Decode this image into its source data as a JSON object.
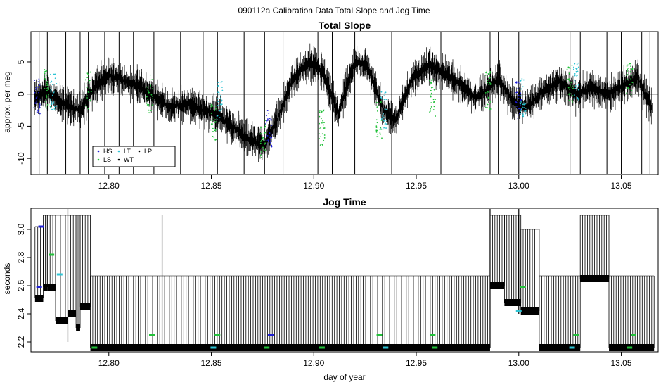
{
  "figure": {
    "title": "090112a   Calibration Data Total Slope and Jog Time",
    "xlabel": "day of year"
  },
  "colors": {
    "HS": "#1f1fd6",
    "LS": "#22c13a",
    "LT": "#2ec4d4",
    "WT": "#000000",
    "LP": "#000000",
    "trace": "#000000"
  },
  "chart_data": [
    {
      "type": "line",
      "title": "Total Slope",
      "xlabel": "",
      "ylabel": "approx. per meg",
      "xlim": [
        12.762,
        13.068
      ],
      "ylim": [
        -12.5,
        9.7
      ],
      "xticks": [
        12.8,
        12.85,
        12.9,
        12.95,
        13.0,
        13.05
      ],
      "xtick_labels": [
        "12.80",
        "12.85",
        "12.90",
        "12.95",
        "13.00",
        "13.05"
      ],
      "yticks": [
        -10,
        -5,
        0,
        5
      ],
      "ytick_labels": [
        "-10",
        "-5",
        "0",
        "5"
      ],
      "reference_line_y": 0,
      "legend": {
        "placement": "bottom-left",
        "entries": [
          {
            "label": "HS",
            "color": "#1f1fd6"
          },
          {
            "label": "LS",
            "color": "#22c13a"
          },
          {
            "label": "LT",
            "color": "#2ec4d4"
          },
          {
            "label": "WT",
            "color": "#000000"
          },
          {
            "label": "LP",
            "color": "#000000"
          }
        ]
      },
      "trend": {
        "x": [
          12.762,
          12.77,
          12.778,
          12.786,
          12.794,
          12.8,
          12.808,
          12.816,
          12.822,
          12.83,
          12.838,
          12.846,
          12.852,
          12.86,
          12.868,
          12.876,
          12.882,
          12.89,
          12.898,
          12.904,
          12.912,
          12.92,
          12.926,
          12.934,
          12.94,
          12.948,
          12.956,
          12.962,
          12.97,
          12.978,
          12.984,
          12.99,
          12.998,
          13.004,
          13.012,
          13.02,
          13.028,
          13.036,
          13.044,
          13.052,
          13.058,
          13.066
        ],
        "y": [
          -1.0,
          0.5,
          -1.5,
          -2.5,
          1.5,
          3.0,
          2.0,
          1.0,
          -0.5,
          -2.0,
          -1.5,
          -2.5,
          -3.0,
          -5.0,
          -7.0,
          -8.0,
          -4.0,
          2.5,
          5.0,
          3.5,
          -3.0,
          5.0,
          4.5,
          -2.5,
          -4.0,
          2.5,
          4.5,
          3.5,
          2.0,
          -0.5,
          0.5,
          2.5,
          -1.5,
          -2.0,
          0.5,
          2.0,
          0.0,
          1.0,
          0.0,
          1.5,
          2.5,
          -3.0
        ]
      },
      "noise_amplitude": 2.2,
      "colored_clusters": [
        {
          "x": 12.765,
          "color": "#1f1fd6",
          "y_center": -0.5
        },
        {
          "x": 12.77,
          "color": "#22c13a",
          "y_center": 0.8
        },
        {
          "x": 12.773,
          "color": "#2ec4d4",
          "y_center": 0.3
        },
        {
          "x": 12.79,
          "color": "#22c13a",
          "y_center": 0.5
        },
        {
          "x": 12.82,
          "color": "#22c13a",
          "y_center": 0.0
        },
        {
          "x": 12.851,
          "color": "#22c13a",
          "y_center": -4.5
        },
        {
          "x": 12.854,
          "color": "#2ec4d4",
          "y_center": -1.0
        },
        {
          "x": 12.875,
          "color": "#22c13a",
          "y_center": -7.0
        },
        {
          "x": 12.878,
          "color": "#1f1fd6",
          "y_center": -5.5
        },
        {
          "x": 12.904,
          "color": "#22c13a",
          "y_center": -5.0
        },
        {
          "x": 12.932,
          "color": "#22c13a",
          "y_center": -4.0
        },
        {
          "x": 12.934,
          "color": "#2ec4d4",
          "y_center": -2.5
        },
        {
          "x": 12.958,
          "color": "#22c13a",
          "y_center": -0.5
        },
        {
          "x": 12.985,
          "color": "#22c13a",
          "y_center": 0.5
        },
        {
          "x": 13.0,
          "color": "#1f1fd6",
          "y_center": -1.0
        },
        {
          "x": 13.002,
          "color": "#2ec4d4",
          "y_center": -0.5
        },
        {
          "x": 13.025,
          "color": "#22c13a",
          "y_center": 1.5
        },
        {
          "x": 13.028,
          "color": "#2ec4d4",
          "y_center": 2.0
        },
        {
          "x": 13.054,
          "color": "#22c13a",
          "y_center": 2.5
        }
      ],
      "spike_x": [
        12.766,
        12.77,
        12.779,
        12.786,
        12.79,
        12.798,
        12.805,
        12.812,
        12.822,
        12.835,
        12.846,
        12.853,
        12.866,
        12.876,
        12.885,
        12.902,
        12.909,
        12.92,
        12.938,
        12.962,
        12.986,
        12.99,
        13.0,
        13.025,
        13.03,
        13.043,
        13.05,
        13.06,
        13.064
      ]
    },
    {
      "type": "line",
      "title": "Jog Time",
      "xlabel": "day of year",
      "ylabel": "seconds",
      "xlim": [
        12.762,
        13.068
      ],
      "ylim": [
        2.13,
        3.15
      ],
      "xticks": [
        12.8,
        12.85,
        12.9,
        12.95,
        13.0,
        13.05
      ],
      "xtick_labels": [
        "12.80",
        "12.85",
        "12.90",
        "12.95",
        "13.00",
        "13.05"
      ],
      "yticks": [
        2.2,
        2.4,
        2.6,
        2.8,
        3.0
      ],
      "ytick_labels": [
        "2.2",
        "2.4",
        "2.6",
        "2.8",
        "3.0"
      ],
      "segments": [
        {
          "x0": 12.764,
          "x1": 12.768,
          "base": 2.51,
          "high": 3.02
        },
        {
          "x0": 12.768,
          "x1": 12.77,
          "base": 2.59,
          "high": 3.1
        },
        {
          "x0": 12.77,
          "x1": 12.774,
          "base": 2.59,
          "high": 3.1
        },
        {
          "x0": 12.774,
          "x1": 12.78,
          "base": 2.35,
          "high": 3.1
        },
        {
          "x0": 12.78,
          "x1": 12.784,
          "base": 2.4,
          "high": 3.1
        },
        {
          "x0": 12.784,
          "x1": 12.786,
          "base": 2.3,
          "high": 3.1
        },
        {
          "x0": 12.786,
          "x1": 12.791,
          "base": 2.45,
          "high": 3.1
        },
        {
          "x0": 12.791,
          "x1": 12.986,
          "base": 2.16,
          "high": 2.67
        },
        {
          "x0": 12.986,
          "x1": 12.993,
          "base": 2.6,
          "high": 3.1
        },
        {
          "x0": 12.993,
          "x1": 13.001,
          "base": 2.48,
          "high": 3.1
        },
        {
          "x0": 13.001,
          "x1": 13.01,
          "base": 2.42,
          "high": 3.0
        },
        {
          "x0": 13.01,
          "x1": 13.03,
          "base": 2.16,
          "high": 2.67
        },
        {
          "x0": 13.03,
          "x1": 13.044,
          "base": 2.65,
          "high": 3.1
        },
        {
          "x0": 13.044,
          "x1": 13.066,
          "base": 2.16,
          "high": 2.67
        }
      ],
      "isolated_spikes": [
        {
          "x": 12.78,
          "low": 2.2,
          "high": 3.15
        },
        {
          "x": 12.826,
          "low": 2.16,
          "high": 3.1
        },
        {
          "x": 12.986,
          "low": 2.16,
          "high": 3.15
        },
        {
          "x": 13.0,
          "low": 2.4,
          "high": 3.15
        }
      ],
      "colored_markers": [
        {
          "x": 12.793,
          "y": 2.16,
          "color": "#22c13a"
        },
        {
          "x": 12.821,
          "y": 2.25,
          "color": "#22c13a"
        },
        {
          "x": 12.851,
          "y": 2.16,
          "color": "#2ec4d4"
        },
        {
          "x": 12.853,
          "y": 2.25,
          "color": "#22c13a"
        },
        {
          "x": 12.877,
          "y": 2.16,
          "color": "#22c13a"
        },
        {
          "x": 12.879,
          "y": 2.25,
          "color": "#1f1fd6"
        },
        {
          "x": 12.904,
          "y": 2.16,
          "color": "#22c13a"
        },
        {
          "x": 12.932,
          "y": 2.25,
          "color": "#22c13a"
        },
        {
          "x": 12.935,
          "y": 2.16,
          "color": "#2ec4d4"
        },
        {
          "x": 12.958,
          "y": 2.25,
          "color": "#22c13a"
        },
        {
          "x": 12.959,
          "y": 2.16,
          "color": "#22c13a"
        },
        {
          "x": 13.0,
          "y": 2.42,
          "color": "#2ec4d4"
        },
        {
          "x": 13.002,
          "y": 2.59,
          "color": "#22c13a"
        },
        {
          "x": 13.026,
          "y": 2.16,
          "color": "#2ec4d4"
        },
        {
          "x": 13.028,
          "y": 2.25,
          "color": "#22c13a"
        },
        {
          "x": 13.054,
          "y": 2.16,
          "color": "#22c13a"
        },
        {
          "x": 13.056,
          "y": 2.25,
          "color": "#22c13a"
        },
        {
          "x": 12.766,
          "y": 2.59,
          "color": "#1f1fd6"
        },
        {
          "x": 12.767,
          "y": 3.02,
          "color": "#1f1fd6"
        },
        {
          "x": 12.772,
          "y": 2.82,
          "color": "#22c13a"
        },
        {
          "x": 12.776,
          "y": 2.68,
          "color": "#2ec4d4"
        }
      ]
    }
  ]
}
